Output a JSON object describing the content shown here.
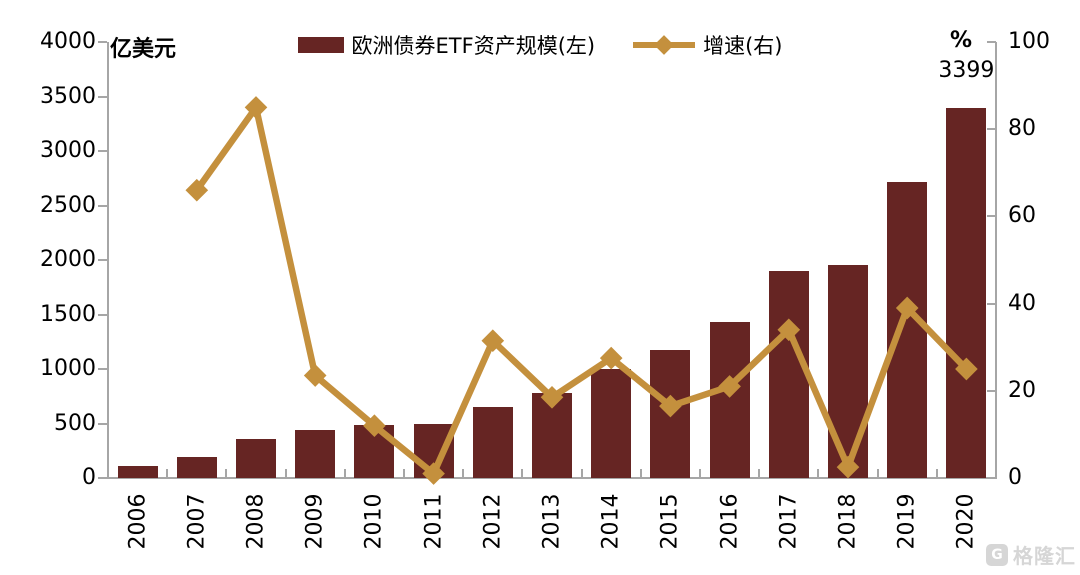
{
  "chart_data": {
    "type": "bar",
    "combo": "bar+line",
    "title": "",
    "categories": [
      "2006",
      "2007",
      "2008",
      "2009",
      "2010",
      "2011",
      "2012",
      "2013",
      "2014",
      "2015",
      "2016",
      "2017",
      "2018",
      "2019",
      "2020"
    ],
    "series": [
      {
        "name": "欧洲债券ETF资产规模(左)",
        "type": "bar",
        "axis": "left",
        "values": [
          110,
          190,
          355,
          440,
          490,
          500,
          655,
          780,
          1000,
          1170,
          1430,
          1900,
          1950,
          2720,
          3399
        ]
      },
      {
        "name": "增速(右)",
        "type": "line",
        "axis": "right",
        "values": [
          null,
          66,
          85,
          23.5,
          12,
          1,
          31.5,
          18.5,
          27.5,
          16.5,
          21,
          34,
          2.5,
          39,
          25
        ]
      }
    ],
    "left_axis": {
      "unit": "亿美元",
      "min": 0,
      "max": 4000,
      "ticks": [
        0,
        500,
        1000,
        1500,
        2000,
        2500,
        3000,
        3500,
        4000
      ]
    },
    "right_axis": {
      "unit": "%",
      "min": 0,
      "max": 100,
      "ticks": [
        0,
        20,
        40,
        60,
        80,
        100
      ]
    },
    "annotations": [
      {
        "category": "2020",
        "text": "3399"
      }
    ],
    "legend_position": "top",
    "grid": false,
    "colors": {
      "bar": "#662523",
      "line": "#C4903D",
      "axis": "#A6A6A6",
      "text": "#000000",
      "watermark": "#D6D6D6"
    }
  },
  "legend": {
    "bars_label": "欧洲债券ETF资产规模(左)",
    "line_label": "增速(右)"
  },
  "header": {
    "left_unit": "亿美元",
    "right_unit": "%"
  },
  "watermark": {
    "logo_letter": "G",
    "text": "格隆汇"
  }
}
